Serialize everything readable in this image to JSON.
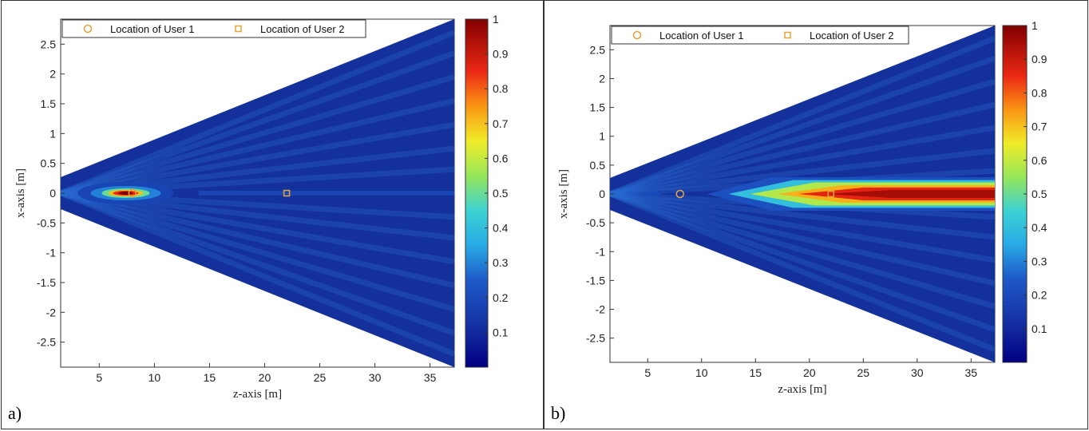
{
  "chart_data": [
    {
      "panel_label": "a)",
      "type": "heatmap",
      "xlabel": "z-axis [m]",
      "ylabel": "x-axis [m]",
      "xlim": [
        1.5,
        37.2
      ],
      "ylim": [
        -2.92,
        2.92
      ],
      "xticks": [
        "5",
        "10",
        "15",
        "20",
        "25",
        "30",
        "35"
      ],
      "yticks": [
        "2.5",
        "2",
        "1.5",
        "1",
        "0.5",
        "0",
        "-0.5",
        "-1",
        "-1.5",
        "-2",
        "-2.5"
      ],
      "colorbar": {
        "range": [
          0,
          1
        ],
        "ticks": [
          "0.1",
          "0.2",
          "0.3",
          "0.4",
          "0.5",
          "0.6",
          "0.7",
          "0.8",
          "0.9",
          "1"
        ]
      },
      "legend": {
        "placement": "top",
        "entries": [
          "Location of User 1",
          "Location of User 2"
        ]
      },
      "users": [
        {
          "name": "Location of User 1",
          "marker": "circle",
          "z": 8,
          "x": 0
        },
        {
          "name": "Location of User 2",
          "marker": "square",
          "z": 22,
          "x": 0
        }
      ],
      "focus": {
        "z": 8,
        "peak": 1.0,
        "description": "near-field focus at User 1"
      }
    },
    {
      "panel_label": "b)",
      "type": "heatmap",
      "xlabel": "z-axis [m]",
      "ylabel": "x-axis [m]",
      "xlim": [
        1.5,
        37.2
      ],
      "ylim": [
        -2.92,
        2.92
      ],
      "xticks": [
        "5",
        "10",
        "15",
        "20",
        "25",
        "30",
        "35"
      ],
      "yticks": [
        "2.5",
        "2",
        "1.5",
        "1",
        "0.5",
        "0",
        "-0.5",
        "-1",
        "-1.5",
        "-2",
        "-2.5"
      ],
      "colorbar": {
        "range": [
          0,
          1
        ],
        "ticks": [
          "0.1",
          "0.2",
          "0.3",
          "0.4",
          "0.5",
          "0.6",
          "0.7",
          "0.8",
          "0.9",
          "1"
        ]
      },
      "legend": {
        "placement": "top",
        "entries": [
          "Location of User 1",
          "Location of User 2"
        ]
      },
      "users": [
        {
          "name": "Location of User 1",
          "marker": "circle",
          "z": 8,
          "x": 0
        },
        {
          "name": "Location of User 2",
          "marker": "square",
          "z": 22,
          "x": 0
        }
      ],
      "focus": {
        "z": 22,
        "peak": 1.0,
        "description": "beam toward User 2 extending to far field"
      }
    }
  ],
  "colors": {
    "user_marker": "#e8a33a",
    "background_field": "#14309a"
  }
}
